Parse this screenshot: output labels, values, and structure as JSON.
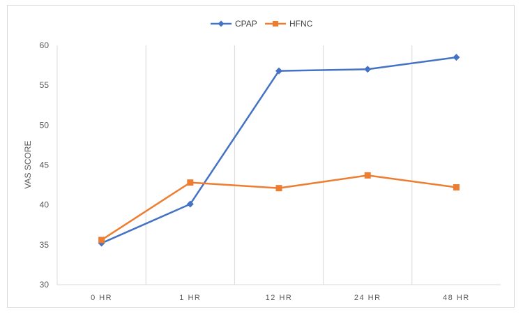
{
  "chart_data": {
    "type": "line",
    "categories": [
      "0 HR",
      "1 HR",
      "12 HR",
      "24 HR",
      "48 HR"
    ],
    "series": [
      {
        "name": "CPAP",
        "values": [
          35.2,
          40.1,
          56.8,
          57.0,
          58.5
        ],
        "color": "#4472C4",
        "marker": "diamond"
      },
      {
        "name": "HFNC",
        "values": [
          35.6,
          42.8,
          42.1,
          43.7,
          42.2
        ],
        "color": "#ED7D31",
        "marker": "square"
      }
    ],
    "title": "",
    "xlabel": "",
    "ylabel": "VAS SCORE",
    "ylim": [
      30,
      60
    ],
    "yticks": [
      30,
      35,
      40,
      45,
      50,
      55,
      60
    ],
    "grid": "vertical",
    "legend_position": "top"
  }
}
